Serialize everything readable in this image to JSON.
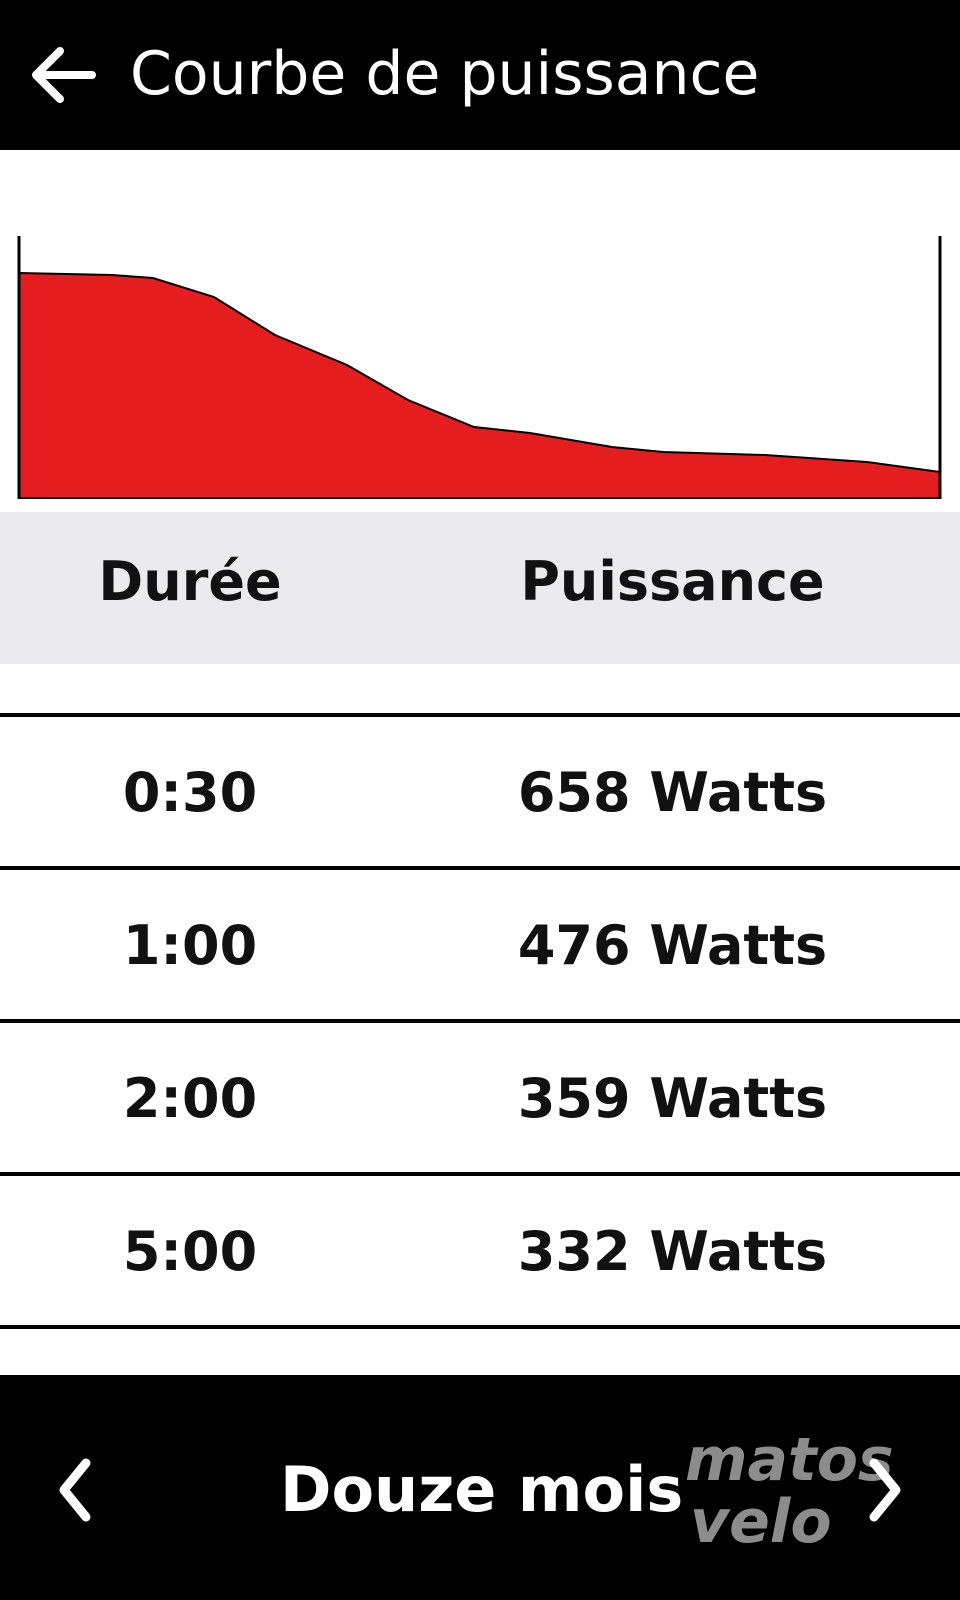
{
  "header": {
    "title": "Courbe de puissance"
  },
  "table": {
    "columns": [
      "Durée",
      "Puissance"
    ],
    "rows": [
      [
        "0:30",
        "658 Watts"
      ],
      [
        "1:00",
        "476 Watts"
      ],
      [
        "2:00",
        "359 Watts"
      ],
      [
        "5:00",
        "332 Watts"
      ]
    ]
  },
  "footer": {
    "period": "Douze mois"
  },
  "watermark": {
    "line1": "matos",
    "line2": "velo"
  }
}
